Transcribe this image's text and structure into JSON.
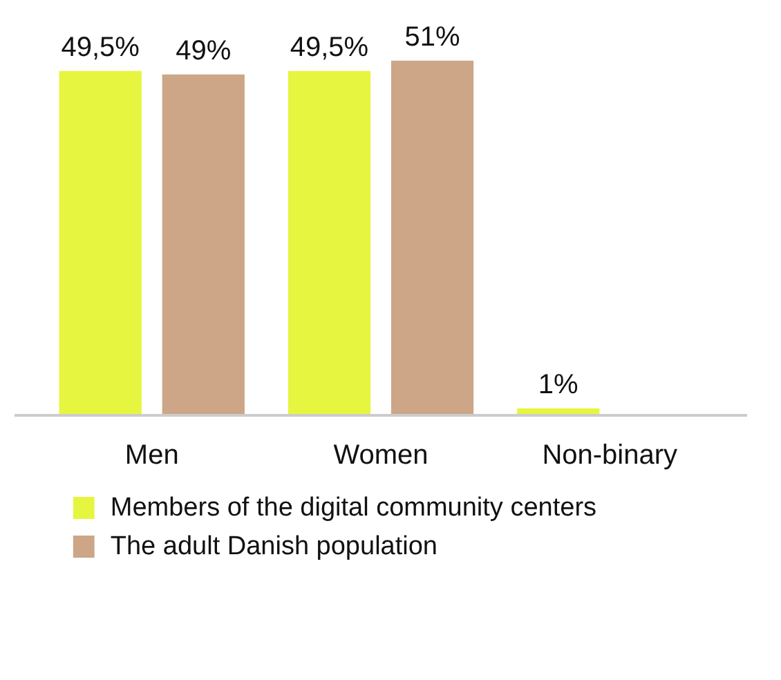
{
  "chart_data": {
    "type": "bar",
    "categories": [
      "Men",
      "Women",
      "Non-binary"
    ],
    "series": [
      {
        "name": "Members of the digital community centers",
        "color": "#e6f53f",
        "values": [
          49.5,
          49.5,
          1
        ],
        "value_labels": [
          "49,5%",
          "49,5%",
          "1%"
        ]
      },
      {
        "name": "The adult Danish population",
        "color": "#cca686",
        "values": [
          49,
          51,
          null
        ],
        "value_labels": [
          "49%",
          "51%",
          null
        ]
      }
    ],
    "legend": "bottom"
  }
}
